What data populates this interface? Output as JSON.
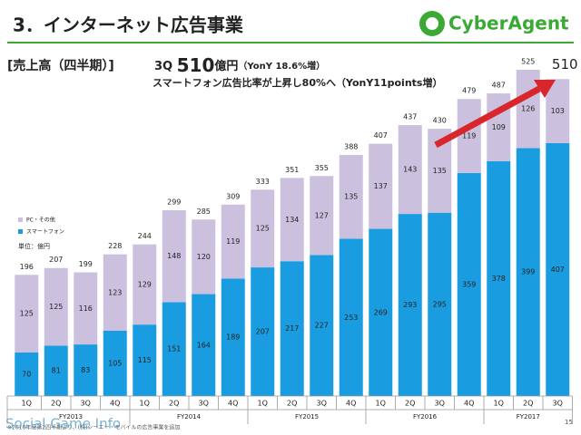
{
  "header": {
    "title": "3．インターネット広告事業",
    "logo": "CyberAgent",
    "section": "[売上高（四半期）]",
    "headline": [
      "3Q",
      "510",
      "億円",
      "（YonY 18.6%増）"
    ],
    "subline": "スマートフォン広告比率が上昇し80%へ（YonY11points増）",
    "unit": "単位：億円",
    "footnote": "※2016年度第2四半期より、(株)シーエー・モバイルの広告事業を追加",
    "page": "15",
    "watermark": "Social Game Info"
  },
  "chart_data": {
    "type": "bar",
    "stacked": true,
    "ylim": [
      0,
      525
    ],
    "groups": [
      {
        "name": "FY2013",
        "quarters": [
          "1Q",
          "2Q",
          "3Q",
          "4Q"
        ]
      },
      {
        "name": "FY2014",
        "quarters": [
          "1Q",
          "2Q",
          "3Q",
          "4Q"
        ]
      },
      {
        "name": "FY2015",
        "quarters": [
          "1Q",
          "2Q",
          "3Q",
          "4Q"
        ]
      },
      {
        "name": "FY2016",
        "quarters": [
          "1Q",
          "2Q",
          "3Q",
          "4Q"
        ]
      },
      {
        "name": "FY2017",
        "quarters": [
          "1Q",
          "2Q",
          "3Q"
        ]
      }
    ],
    "series": [
      {
        "name": "スマートフォン",
        "color": "#1a9de0",
        "values": [
          70,
          81,
          83,
          105,
          115,
          151,
          164,
          189,
          207,
          217,
          227,
          253,
          269,
          293,
          295,
          359,
          378,
          399,
          407
        ]
      },
      {
        "name": "PC・その他",
        "color": "#cbc1de",
        "values": [
          125,
          125,
          116,
          123,
          129,
          148,
          120,
          119,
          125,
          134,
          127,
          135,
          137,
          143,
          135,
          119,
          109,
          126,
          103
        ]
      }
    ],
    "totals": [
      196,
      207,
      199,
      228,
      244,
      299,
      285,
      309,
      333,
      351,
      355,
      388,
      407,
      437,
      430,
      479,
      487,
      525,
      510
    ]
  }
}
